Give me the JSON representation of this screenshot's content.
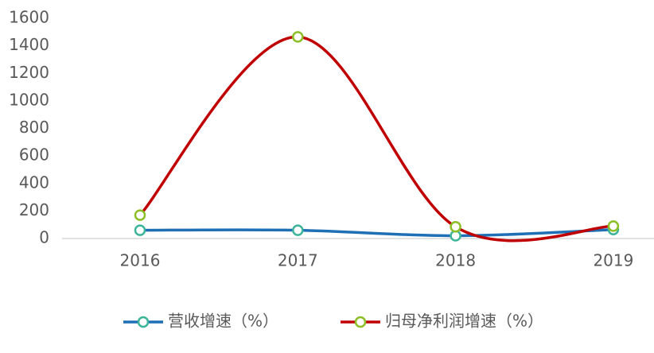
{
  "chart_data": {
    "type": "line",
    "categories": [
      "2016",
      "2017",
      "2018",
      "2019"
    ],
    "series": [
      {
        "name": "营收增速（%）",
        "color": "#1f6fb5",
        "marker_color": "#3cb49a",
        "values": [
          60,
          60,
          20,
          65
        ]
      },
      {
        "name": "归母净利润增速（%）",
        "color": "#c00000",
        "marker_color": "#8cbf26",
        "values": [
          170,
          1465,
          85,
          90
        ]
      }
    ],
    "ylim": [
      0,
      1600
    ],
    "yticks": [
      0,
      200,
      400,
      600,
      800,
      1000,
      1200,
      1400,
      1600
    ],
    "grid": false,
    "smooth": true,
    "legend": "bottom"
  }
}
